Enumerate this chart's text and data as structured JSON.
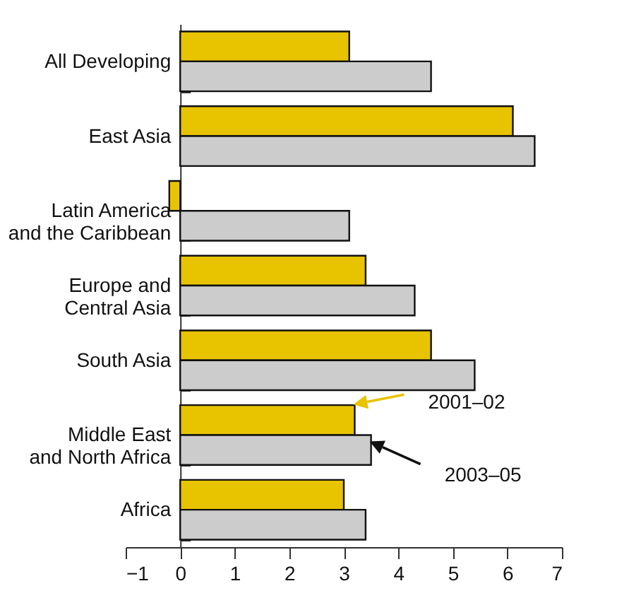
{
  "chart_data": {
    "type": "bar",
    "orientation": "horizontal",
    "categories": [
      "All Developing",
      "East Asia",
      "Latin America and the Caribbean",
      "Europe and Central Asia",
      "South Asia",
      "Middle East and North Africa",
      "Africa"
    ],
    "series": [
      {
        "name": "2001–02",
        "color": "#e8c300",
        "values": [
          3.1,
          6.1,
          -0.2,
          3.4,
          4.6,
          3.2,
          3.0
        ]
      },
      {
        "name": "2003–05",
        "color": "#cccccc",
        "values": [
          4.6,
          6.5,
          3.1,
          4.3,
          5.4,
          3.5,
          3.4
        ]
      }
    ],
    "xlim": [
      -1,
      7
    ],
    "xticks": [
      -1,
      0,
      1,
      2,
      3,
      4,
      5,
      6,
      7
    ],
    "grid": false,
    "legend": "right"
  }
}
